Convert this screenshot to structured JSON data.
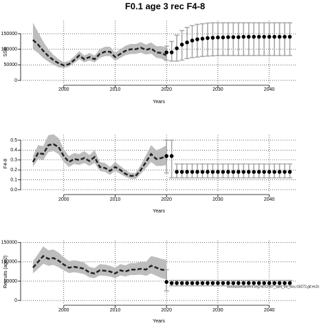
{
  "title": "F0.1 age 3 rec F4-8",
  "chart_data": [
    {
      "type": "line",
      "xlabel": "Years",
      "ylabel": "SSB",
      "xlim": [
        1991.6,
        2045.4
      ],
      "xticks": [
        2000,
        2010,
        2020,
        2030,
        2040
      ],
      "ylim": [
        -9000,
        192000
      ],
      "yticks": [
        0,
        50000,
        100000,
        150000
      ],
      "grid": true,
      "color": "#222222",
      "band_color": "#bdbdbd",
      "error_color": "#a8a8a8",
      "x": [
        1994,
        1995,
        1996,
        1997,
        1998,
        1999,
        2000,
        2001,
        2002,
        2003,
        2004,
        2005,
        2006,
        2007,
        2008,
        2009,
        2010,
        2011,
        2012,
        2013,
        2014,
        2015,
        2016,
        2017,
        2018,
        2019,
        2020
      ],
      "values": [
        130000,
        115000,
        95000,
        78000,
        65000,
        55000,
        48000,
        52000,
        65000,
        80000,
        68000,
        75000,
        68000,
        85000,
        92000,
        92000,
        75000,
        85000,
        95000,
        100000,
        100000,
        105000,
        98000,
        103000,
        90000,
        88000,
        80000
      ],
      "lower": [
        100000,
        88000,
        72000,
        60000,
        50000,
        42000,
        40000,
        44000,
        55000,
        68000,
        58000,
        64000,
        58000,
        72000,
        78000,
        78000,
        63000,
        72000,
        81000,
        85000,
        85000,
        89000,
        83000,
        86000,
        73000,
        70000,
        60000
      ],
      "upper": [
        185000,
        155000,
        125000,
        100000,
        82000,
        68000,
        58000,
        62000,
        77000,
        94000,
        80000,
        88000,
        80000,
        100000,
        108000,
        108000,
        89000,
        100000,
        111000,
        117000,
        117000,
        123000,
        115000,
        122000,
        110000,
        110000,
        105000
      ],
      "forecast": {
        "x": [
          2020,
          2021,
          2022,
          2023,
          2024,
          2025,
          2026,
          2027,
          2028,
          2029,
          2030,
          2031,
          2032,
          2033,
          2034,
          2035,
          2036,
          2037,
          2038,
          2039,
          2040,
          2041,
          2042,
          2043,
          2044
        ],
        "values": [
          90000,
          90000,
          103000,
          115000,
          122000,
          128000,
          132000,
          134000,
          136000,
          137000,
          138000,
          138000,
          139000,
          139000,
          139000,
          140000,
          140000,
          140000,
          140000,
          140000,
          140000,
          140000,
          140000,
          140000,
          140000
        ],
        "lower": [
          65000,
          62000,
          62000,
          65000,
          70000,
          73000,
          75000,
          77000,
          78000,
          79000,
          80000,
          80000,
          80000,
          80000,
          80000,
          80000,
          80000,
          80000,
          80000,
          80000,
          80000,
          80000,
          80000,
          80000,
          80000
        ],
        "upper": [
          110000,
          125000,
          145000,
          160000,
          170000,
          176000,
          180000,
          182000,
          184000,
          185000,
          185000,
          185000,
          185000,
          185000,
          185000,
          185000,
          185000,
          185000,
          185000,
          185000,
          185000,
          185000,
          185000,
          185000,
          185000
        ]
      }
    },
    {
      "type": "line",
      "xlabel": "Years",
      "ylabel": "F4-8",
      "xlim": [
        1991.6,
        2045.4
      ],
      "xticks": [
        2000,
        2010,
        2020,
        2030,
        2040
      ],
      "ylim": [
        -0.028,
        0.555
      ],
      "yticks": [
        {
          "value": 0,
          "label": "0.0"
        },
        0.1,
        0.2,
        0.3,
        0.4,
        0.5
      ],
      "grid": true,
      "color": "#222222",
      "band_color": "#bdbdbd",
      "error_color": "#a8a8a8",
      "x": [
        1994,
        1995,
        1996,
        1997,
        1998,
        1999,
        2000,
        2001,
        2002,
        2003,
        2004,
        2005,
        2006,
        2007,
        2008,
        2009,
        2010,
        2011,
        2012,
        2013,
        2014,
        2015,
        2016,
        2017,
        2018,
        2019,
        2020
      ],
      "values": [
        0.28,
        0.37,
        0.36,
        0.45,
        0.46,
        0.43,
        0.34,
        0.28,
        0.31,
        0.3,
        0.32,
        0.29,
        0.33,
        0.23,
        0.22,
        0.19,
        0.23,
        0.2,
        0.16,
        0.14,
        0.14,
        0.2,
        0.28,
        0.36,
        0.31,
        0.32,
        0.34
      ],
      "lower": [
        0.23,
        0.31,
        0.3,
        0.38,
        0.39,
        0.36,
        0.28,
        0.23,
        0.26,
        0.25,
        0.27,
        0.24,
        0.27,
        0.19,
        0.18,
        0.15,
        0.19,
        0.16,
        0.13,
        0.11,
        0.11,
        0.16,
        0.22,
        0.28,
        0.24,
        0.24,
        0.25
      ],
      "upper": [
        0.34,
        0.45,
        0.44,
        0.55,
        0.56,
        0.52,
        0.41,
        0.34,
        0.37,
        0.36,
        0.39,
        0.35,
        0.4,
        0.28,
        0.27,
        0.23,
        0.28,
        0.24,
        0.2,
        0.17,
        0.17,
        0.25,
        0.35,
        0.45,
        0.4,
        0.42,
        0.45
      ],
      "forecast": {
        "x": [
          2020,
          2021,
          2022,
          2023,
          2024,
          2025,
          2026,
          2027,
          2028,
          2029,
          2030,
          2031,
          2032,
          2033,
          2034,
          2035,
          2036,
          2037,
          2038,
          2039,
          2040,
          2041,
          2042,
          2043,
          2044
        ],
        "values": [
          0.34,
          0.34,
          0.18,
          0.18,
          0.18,
          0.18,
          0.18,
          0.18,
          0.18,
          0.18,
          0.18,
          0.18,
          0.18,
          0.18,
          0.18,
          0.18,
          0.18,
          0.18,
          0.18,
          0.18,
          0.18,
          0.18,
          0.18,
          0.18,
          0.18
        ],
        "lower": [
          0.17,
          0.12,
          0.12,
          0.12,
          0.12,
          0.12,
          0.12,
          0.12,
          0.12,
          0.12,
          0.12,
          0.12,
          0.12,
          0.12,
          0.12,
          0.12,
          0.12,
          0.12,
          0.12,
          0.12,
          0.12,
          0.12,
          0.12,
          0.12,
          0.12
        ],
        "upper": [
          0.5,
          0.5,
          0.26,
          0.26,
          0.26,
          0.26,
          0.26,
          0.26,
          0.26,
          0.26,
          0.26,
          0.26,
          0.26,
          0.26,
          0.26,
          0.26,
          0.26,
          0.26,
          0.26,
          0.26,
          0.26,
          0.26,
          0.26,
          0.26,
          0.26
        ]
      }
    },
    {
      "type": "line",
      "xlabel": "Years",
      "ylabel": "Recruits (age2)",
      "annotation": "stockassessment.org,NCCN67_split_bb_sco,r16272,git:ec2c",
      "xlim": [
        1991.6,
        2045.4
      ],
      "xticks": [
        2000,
        2010,
        2020,
        2030,
        2040
      ],
      "ylim": [
        -7000,
        155000
      ],
      "yticks": [
        0,
        50000,
        100000,
        150000
      ],
      "grid": true,
      "color": "#222222",
      "band_color": "#bdbdbd",
      "error_color": "#a8a8a8",
      "x": [
        1994,
        1995,
        1996,
        1997,
        1998,
        1999,
        2000,
        2001,
        2002,
        2003,
        2004,
        2005,
        2006,
        2007,
        2008,
        2009,
        2010,
        2011,
        2012,
        2013,
        2014,
        2015,
        2016,
        2017,
        2018,
        2019,
        2020
      ],
      "values": [
        85000,
        100000,
        115000,
        108000,
        110000,
        103000,
        93000,
        85000,
        87000,
        85000,
        82000,
        72000,
        70000,
        78000,
        77000,
        75000,
        70000,
        78000,
        75000,
        80000,
        80000,
        82000,
        80000,
        90000,
        85000,
        80000,
        78000
      ],
      "lower": [
        70000,
        82000,
        95000,
        90000,
        92000,
        86000,
        78000,
        71000,
        73000,
        71000,
        68000,
        60000,
        58000,
        65000,
        64000,
        62000,
        58000,
        65000,
        62000,
        66000,
        66000,
        67000,
        64000,
        70000,
        64000,
        58000,
        55000
      ],
      "upper": [
        102000,
        120000,
        140000,
        130000,
        132000,
        124000,
        112000,
        102000,
        104000,
        102000,
        98000,
        87000,
        84000,
        94000,
        93000,
        90000,
        85000,
        94000,
        91000,
        97000,
        97000,
        100000,
        100000,
        115000,
        112000,
        108000,
        105000
      ],
      "forecast": {
        "x": [
          2020,
          2021,
          2022,
          2023,
          2024,
          2025,
          2026,
          2027,
          2028,
          2029,
          2030,
          2031,
          2032,
          2033,
          2034,
          2035,
          2036,
          2037,
          2038,
          2039,
          2040,
          2041,
          2042,
          2043,
          2044
        ],
        "values": [
          48000,
          45000,
          45000,
          45000,
          45000,
          45000,
          45000,
          45000,
          45000,
          45000,
          45000,
          45000,
          45000,
          45000,
          45000,
          45000,
          45000,
          45000,
          45000,
          45000,
          45000,
          45000,
          45000,
          45000,
          45000
        ],
        "lower": [
          25000,
          38000,
          38000,
          38000,
          38000,
          38000,
          38000,
          38000,
          38000,
          38000,
          38000,
          38000,
          38000,
          38000,
          38000,
          38000,
          38000,
          38000,
          38000,
          38000,
          38000,
          38000,
          38000,
          38000,
          38000
        ],
        "upper": [
          80000,
          52000,
          52000,
          52000,
          52000,
          52000,
          52000,
          52000,
          52000,
          52000,
          52000,
          52000,
          52000,
          52000,
          52000,
          52000,
          52000,
          52000,
          52000,
          52000,
          52000,
          52000,
          52000,
          52000,
          52000
        ]
      }
    }
  ]
}
